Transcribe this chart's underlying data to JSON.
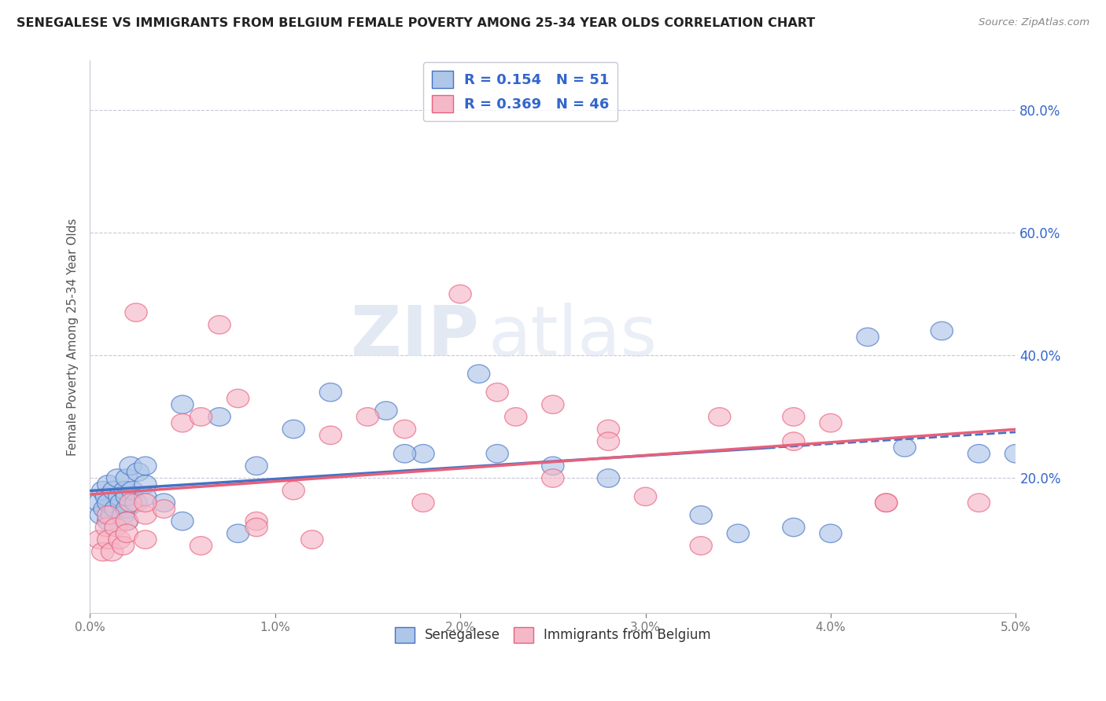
{
  "title": "SENEGALESE VS IMMIGRANTS FROM BELGIUM FEMALE POVERTY AMONG 25-34 YEAR OLDS CORRELATION CHART",
  "source": "Source: ZipAtlas.com",
  "ylabel": "Female Poverty Among 25-34 Year Olds",
  "right_ytick_vals": [
    0.2,
    0.4,
    0.6,
    0.8
  ],
  "right_ytick_labels": [
    "20.0%",
    "40.0%",
    "60.0%",
    "80.0%"
  ],
  "legend1_label": "R = 0.154   N = 51",
  "legend2_label": "R = 0.369   N = 46",
  "blue_color": "#aec6e8",
  "pink_color": "#f5b8c8",
  "line_blue": "#4472c4",
  "line_pink": "#e8607a",
  "text_color": "#3366cc",
  "xmin": 0.0,
  "xmax": 0.05,
  "ymin": -0.02,
  "ymax": 0.88,
  "grid_color": "#c8c8d8",
  "background": "#ffffff",
  "senegalese_x": [
    0.0005,
    0.0006,
    0.0007,
    0.0008,
    0.0009,
    0.001,
    0.001,
    0.001,
    0.0012,
    0.0013,
    0.0014,
    0.0015,
    0.0016,
    0.0017,
    0.0018,
    0.0019,
    0.002,
    0.002,
    0.002,
    0.002,
    0.0022,
    0.0023,
    0.0025,
    0.0026,
    0.003,
    0.003,
    0.003,
    0.004,
    0.005,
    0.007,
    0.009,
    0.011,
    0.013,
    0.016,
    0.018,
    0.021,
    0.025,
    0.028,
    0.033,
    0.038,
    0.042,
    0.044,
    0.046,
    0.048,
    0.05,
    0.035,
    0.04,
    0.017,
    0.022,
    0.005,
    0.008
  ],
  "senegalese_y": [
    0.16,
    0.14,
    0.18,
    0.15,
    0.17,
    0.13,
    0.16,
    0.19,
    0.14,
    0.18,
    0.15,
    0.2,
    0.17,
    0.16,
    0.14,
    0.18,
    0.15,
    0.17,
    0.2,
    0.13,
    0.22,
    0.18,
    0.16,
    0.21,
    0.19,
    0.17,
    0.22,
    0.16,
    0.32,
    0.3,
    0.22,
    0.28,
    0.34,
    0.31,
    0.24,
    0.37,
    0.22,
    0.2,
    0.14,
    0.12,
    0.43,
    0.25,
    0.44,
    0.24,
    0.24,
    0.11,
    0.11,
    0.24,
    0.24,
    0.13,
    0.11
  ],
  "belgium_x": [
    0.0005,
    0.0007,
    0.0009,
    0.001,
    0.001,
    0.0012,
    0.0014,
    0.0016,
    0.0018,
    0.002,
    0.002,
    0.0022,
    0.0025,
    0.003,
    0.003,
    0.004,
    0.005,
    0.006,
    0.007,
    0.008,
    0.009,
    0.011,
    0.013,
    0.015,
    0.017,
    0.02,
    0.022,
    0.025,
    0.025,
    0.028,
    0.03,
    0.034,
    0.038,
    0.04,
    0.043,
    0.003,
    0.006,
    0.009,
    0.012,
    0.018,
    0.023,
    0.028,
    0.033,
    0.038,
    0.043,
    0.048
  ],
  "belgium_y": [
    0.1,
    0.08,
    0.12,
    0.1,
    0.14,
    0.08,
    0.12,
    0.1,
    0.09,
    0.13,
    0.11,
    0.16,
    0.47,
    0.14,
    0.1,
    0.15,
    0.29,
    0.3,
    0.45,
    0.33,
    0.13,
    0.18,
    0.27,
    0.3,
    0.28,
    0.5,
    0.34,
    0.2,
    0.32,
    0.28,
    0.17,
    0.3,
    0.3,
    0.29,
    0.16,
    0.16,
    0.09,
    0.12,
    0.1,
    0.16,
    0.3,
    0.26,
    0.09,
    0.26,
    0.16,
    0.16
  ]
}
